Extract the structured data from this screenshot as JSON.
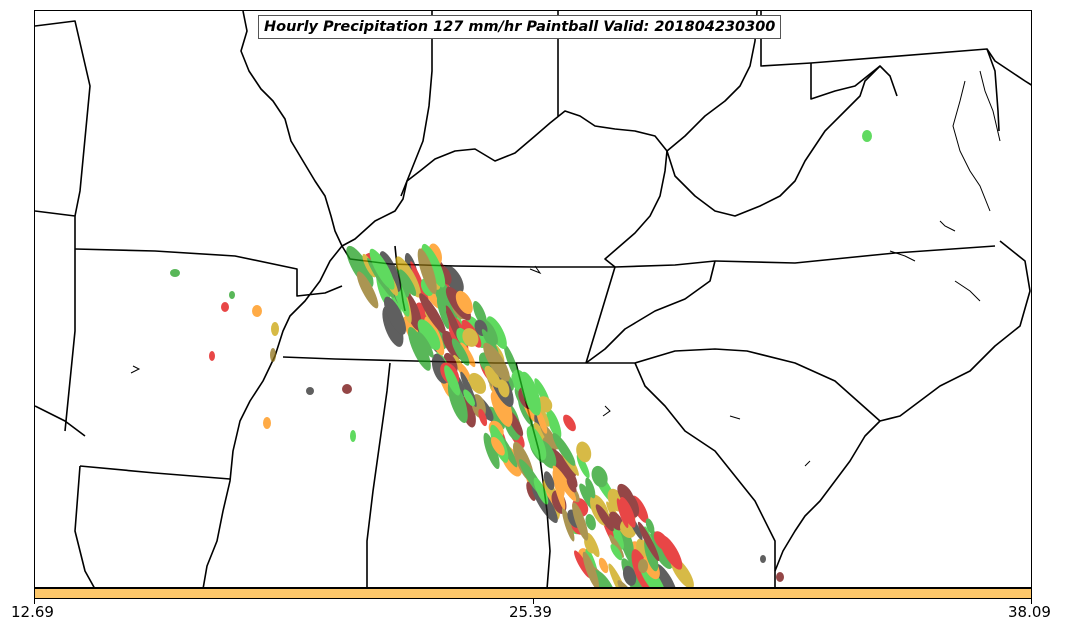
{
  "title": "Hourly Precipitation 127 mm/hr Paintball Valid: 201804230300",
  "colorbar": {
    "color": "#fdc76a",
    "min_label": "12.69",
    "mid_label": "25.39",
    "max_label": "38.09"
  },
  "paintball_colors": [
    "#1a9c1a",
    "#e00000",
    "#ff8c00",
    "#8b6d10",
    "#222222",
    "#6b0000",
    "#22cc22",
    "#c8a000"
  ],
  "map": {
    "border_color": "#000000",
    "background": "#ffffff"
  }
}
